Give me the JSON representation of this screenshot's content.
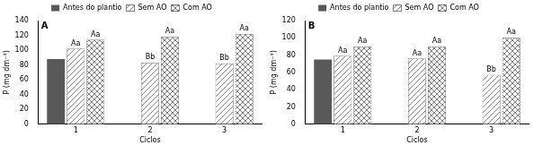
{
  "chart_data": [
    {
      "type": "bar",
      "title": "A",
      "x_label": "Ciclos",
      "y_label": "P (mg dm⁻³)",
      "categories": [
        "1",
        "2",
        "3"
      ],
      "series": [
        {
          "name": "Antes do plantio",
          "color": "#595959",
          "values": [
            88,
            null,
            null
          ],
          "annotations": [
            null,
            null,
            null
          ]
        },
        {
          "name": "Sem AO",
          "color": "#8c8c8c",
          "values": [
            102,
            83,
            82
          ],
          "annotations": [
            "Aa",
            "Bb",
            "Bb"
          ]
        },
        {
          "name": "Com AO",
          "color": "#7f7f7f",
          "values": [
            114,
            118,
            122
          ],
          "annotations": [
            "Aa",
            "Aa",
            "Aa"
          ]
        }
      ],
      "ylim": [
        0,
        140
      ],
      "yticks": [
        0,
        20,
        40,
        60,
        80,
        100,
        120,
        140
      ],
      "grid": false,
      "legend": "top"
    },
    {
      "type": "bar",
      "title": "B",
      "x_label": "Ciclos",
      "y_label": "P (mg dm⁻³)",
      "categories": [
        "1",
        "2",
        "3"
      ],
      "series": [
        {
          "name": "Antes do plantio",
          "color": "#595959",
          "values": [
            75,
            null,
            null
          ],
          "annotations": [
            null,
            null,
            null
          ]
        },
        {
          "name": "Sem AO",
          "color": "#8c8c8c",
          "values": [
            79,
            76,
            57
          ],
          "annotations": [
            "Aa",
            "Aa",
            "Bb"
          ]
        },
        {
          "name": "Com AO",
          "color": "#7f7f7f",
          "values": [
            90,
            90,
            100
          ],
          "annotations": [
            "Aa",
            "Aa",
            "Aa"
          ]
        }
      ],
      "ylim": [
        0,
        120
      ],
      "yticks": [
        0,
        20,
        40,
        60,
        80,
        100,
        120
      ],
      "grid": false,
      "legend": "top"
    }
  ]
}
